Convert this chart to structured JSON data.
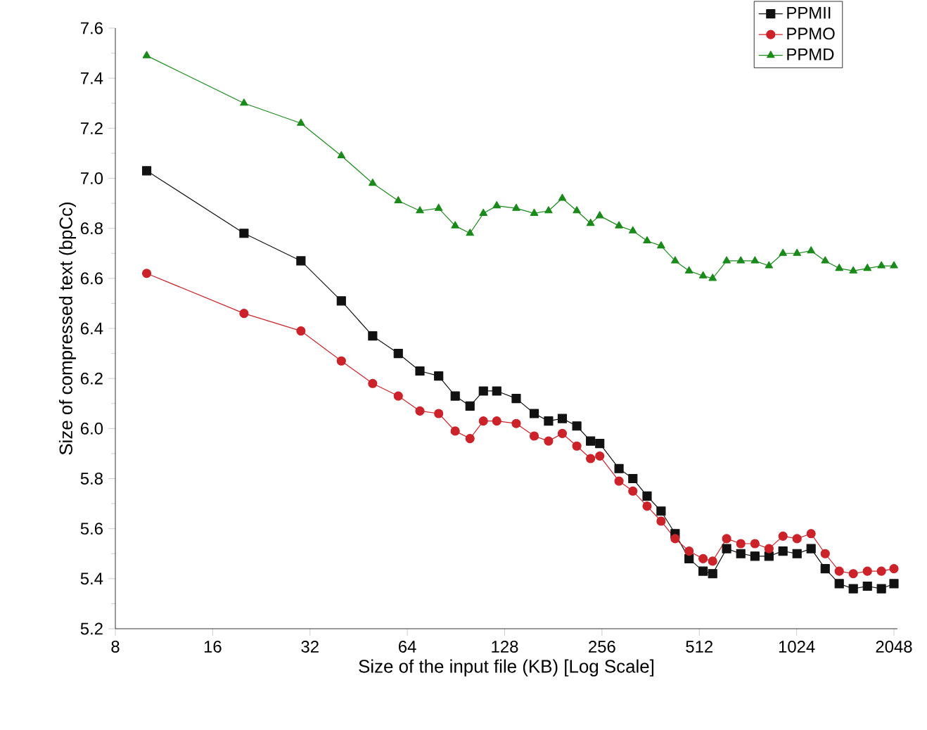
{
  "chart_data": {
    "type": "line",
    "xlabel": "Size of the input file (KB) [Log Scale]",
    "ylabel": "Size of compressed text (bpCc)",
    "log": "x",
    "grid": false,
    "legend": "top right",
    "line_style": "solid",
    "xlim": [
      8,
      2100
    ],
    "ylim": [
      5.2,
      7.6
    ],
    "xticks": [
      8,
      16,
      32,
      64,
      128,
      256,
      512,
      1024,
      2048
    ],
    "yticks": [
      5.2,
      5.4,
      5.6,
      5.8,
      {
        "value": 6,
        "label": "6.0"
      },
      6.2,
      6.4,
      6.6,
      6.8,
      {
        "value": 7,
        "label": "7.0"
      },
      7.2,
      7.4,
      7.6
    ],
    "x": [
      10,
      20,
      30,
      40,
      50,
      60,
      70,
      80,
      90,
      100,
      110,
      121,
      139,
      158,
      175,
      193,
      214,
      236,
      252,
      289,
      319,
      353,
      390,
      431,
      476,
      526,
      563,
      622,
      688,
      761,
      841,
      929,
      1027,
      1135,
      1255,
      1387,
      1533,
      1695,
      1873,
      2048
    ],
    "series": [
      {
        "name": "PPMII",
        "color": "#111111",
        "marker": "square",
        "values": [
          7.03,
          6.78,
          6.67,
          6.51,
          6.37,
          6.3,
          6.23,
          6.21,
          6.13,
          6.09,
          6.15,
          6.15,
          6.12,
          6.06,
          6.03,
          6.04,
          6.01,
          5.95,
          5.94,
          5.84,
          5.8,
          5.73,
          5.67,
          5.58,
          5.48,
          5.43,
          5.42,
          5.52,
          5.5,
          5.49,
          5.49,
          5.51,
          5.5,
          5.52,
          5.44,
          5.38,
          5.36,
          5.37,
          5.36,
          5.38
        ]
      },
      {
        "name": "PPMO",
        "color": "#cc2229",
        "marker": "circle",
        "values": [
          6.62,
          6.46,
          6.39,
          6.27,
          6.18,
          6.13,
          6.07,
          6.06,
          5.99,
          5.96,
          6.03,
          6.03,
          6.02,
          5.97,
          5.95,
          5.98,
          5.93,
          5.88,
          5.89,
          5.79,
          5.75,
          5.69,
          5.63,
          5.56,
          5.51,
          5.48,
          5.47,
          5.56,
          5.54,
          5.54,
          5.52,
          5.57,
          5.56,
          5.58,
          5.5,
          5.43,
          5.42,
          5.43,
          5.43,
          5.44
        ]
      },
      {
        "name": "PPMD",
        "color": "#1a8a1a",
        "marker": "triangle",
        "values": [
          7.49,
          7.3,
          7.22,
          7.09,
          6.98,
          6.91,
          6.87,
          6.88,
          6.81,
          6.78,
          6.86,
          6.89,
          6.88,
          6.86,
          6.87,
          6.92,
          6.87,
          6.82,
          6.85,
          6.81,
          6.79,
          6.75,
          6.73,
          6.67,
          6.63,
          6.61,
          6.6,
          6.67,
          6.67,
          6.67,
          6.65,
          6.7,
          6.7,
          6.71,
          6.67,
          6.64,
          6.63,
          6.64,
          6.65,
          6.65
        ]
      }
    ]
  }
}
